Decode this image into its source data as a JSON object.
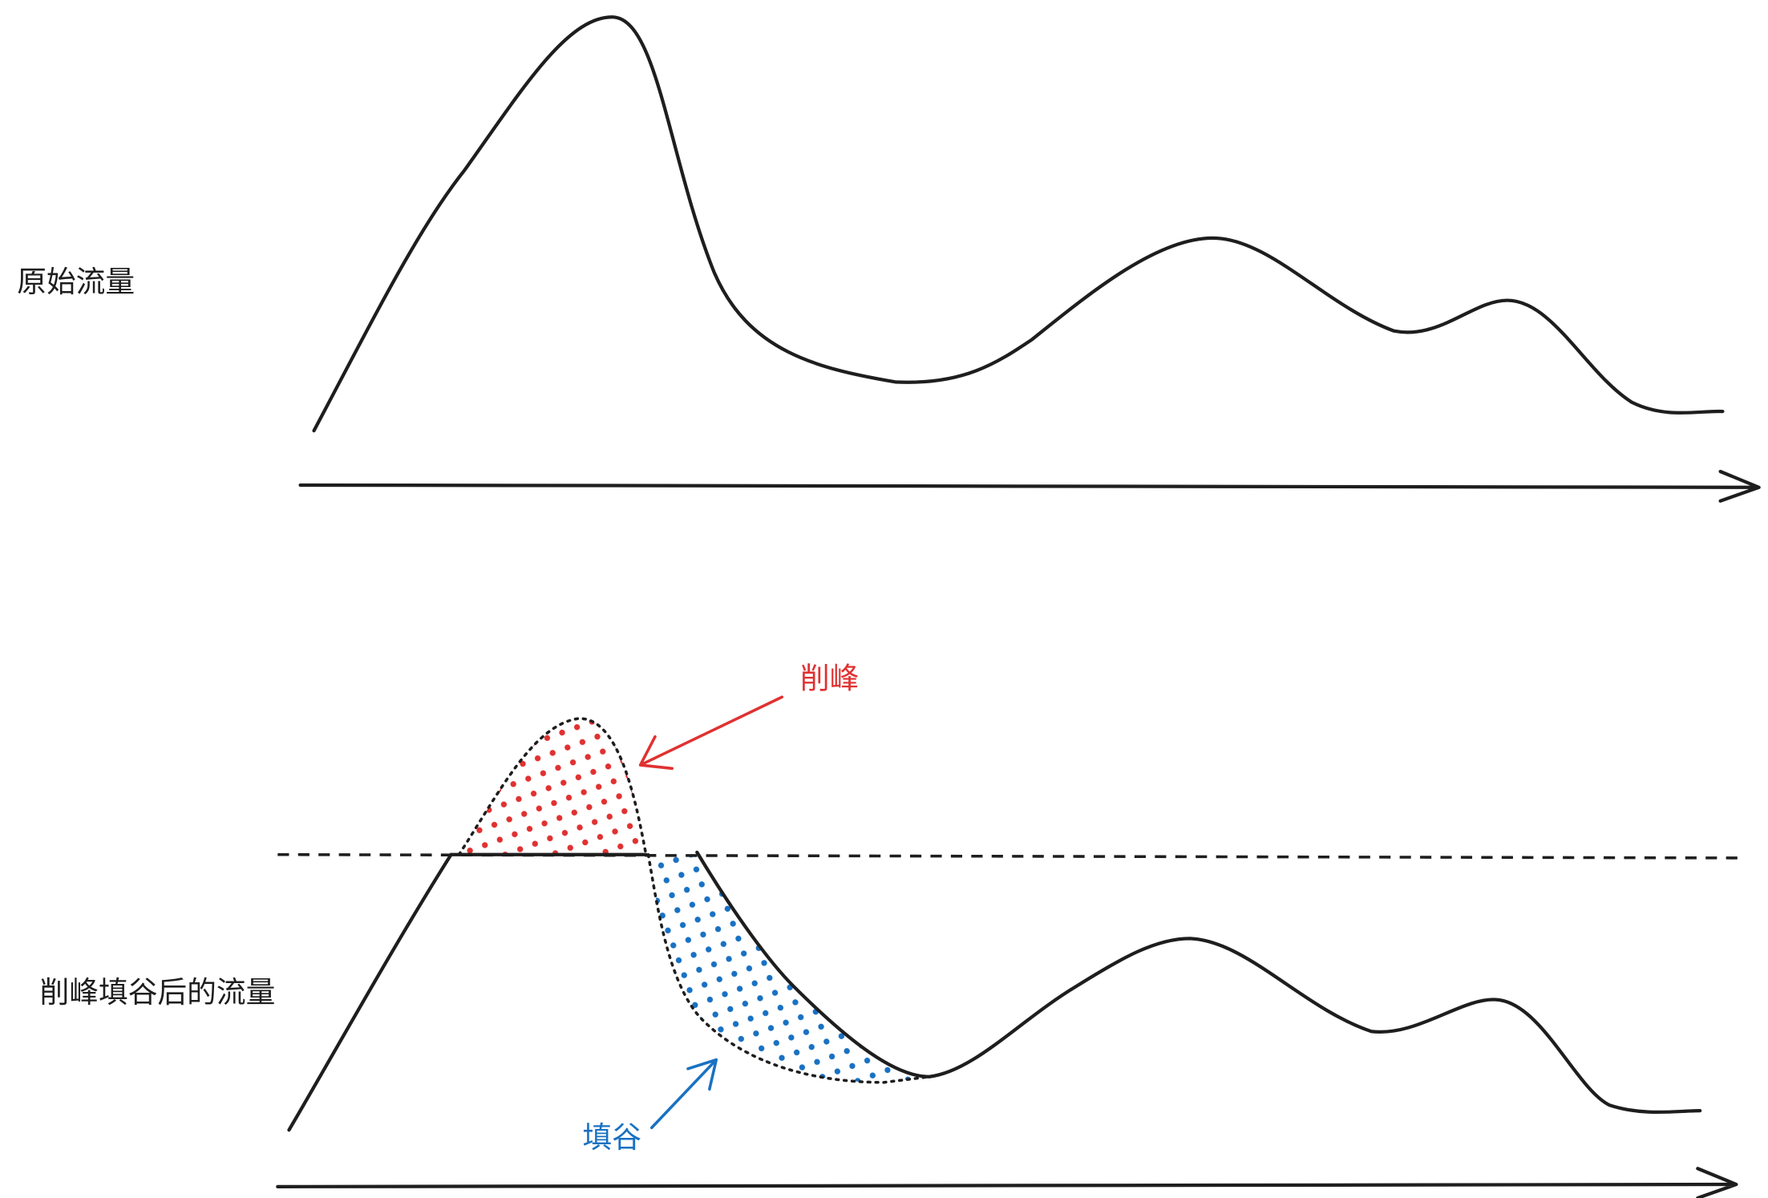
{
  "labels": {
    "original": "原始流量",
    "after": "削峰填谷后的流量",
    "peak": "削峰",
    "valley": "填谷"
  }
}
